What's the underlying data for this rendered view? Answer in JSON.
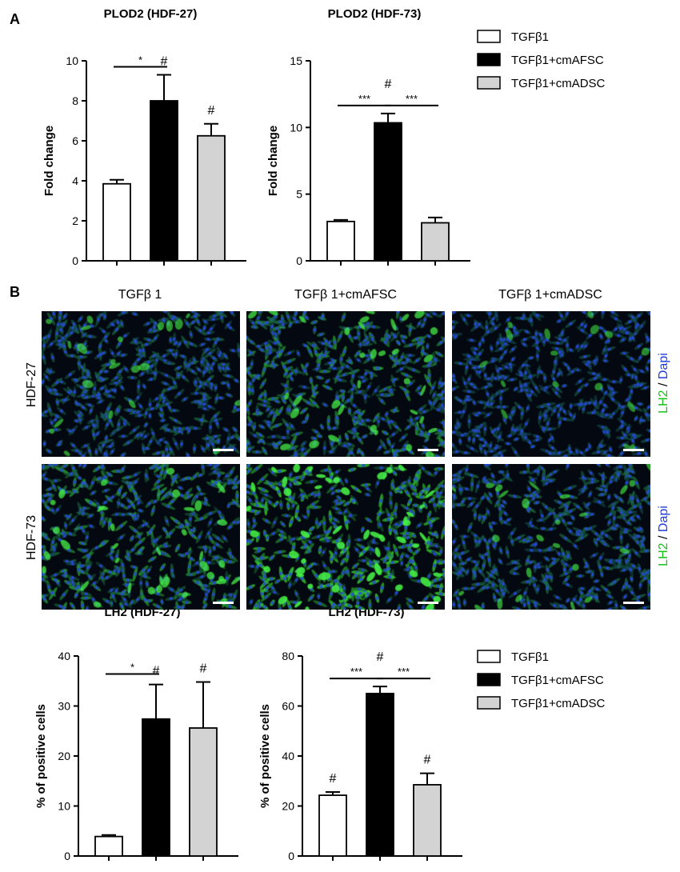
{
  "panels": {
    "a": "A",
    "b": "B"
  },
  "legend": {
    "items": [
      {
        "label": "TGFβ1",
        "color": "#ffffff"
      },
      {
        "label": "TGFβ1+cmAFSC",
        "color": "#000000"
      },
      {
        "label": "TGFβ1+cmADSC",
        "color": "#d3d3d3"
      }
    ]
  },
  "micrographs": {
    "columns": [
      "TGFβ 1",
      "TGFβ 1+cmAFSC",
      "TGFβ 1+cmADSC"
    ],
    "rows": [
      "HDF-27",
      "HDF-73"
    ],
    "stain_lh2": "LH2",
    "stain_sep": " / ",
    "stain_dapi": "Dapi",
    "green_intensity": [
      [
        0.25,
        0.55,
        0.12
      ],
      [
        0.6,
        0.95,
        0.3
      ]
    ]
  },
  "chart_data": [
    {
      "type": "bar",
      "title": "PLOD2 (HDF-27)",
      "ylabel": "Fold change",
      "categories": [
        "TGFβ1",
        "TGFβ1+cmAFSC",
        "TGFβ1+cmADSC"
      ],
      "values": [
        3.85,
        8.0,
        6.25
      ],
      "errors": [
        0.2,
        1.3,
        0.6
      ],
      "colors": [
        "#ffffff",
        "#000000",
        "#d3d3d3"
      ],
      "ylim": [
        0,
        10
      ],
      "yticks": [
        "0",
        "2",
        "4",
        "6",
        "8",
        "10"
      ],
      "bar_marks": [
        "",
        "#",
        "#"
      ],
      "brackets": [
        {
          "from": 0,
          "to": 1,
          "label": "*"
        }
      ]
    },
    {
      "type": "bar",
      "title": "PLOD2 (HDF-73)",
      "ylabel": "Fold change",
      "categories": [
        "TGFβ1",
        "TGFβ1+cmAFSC",
        "TGFβ1+cmADSC"
      ],
      "values": [
        2.95,
        10.35,
        2.85
      ],
      "errors": [
        0.12,
        0.7,
        0.4
      ],
      "colors": [
        "#ffffff",
        "#000000",
        "#d3d3d3"
      ],
      "ylim": [
        0,
        15
      ],
      "yticks": [
        "0",
        "5",
        "10",
        "15"
      ],
      "bar_marks": [
        "",
        "",
        ""
      ],
      "top_mark": "#",
      "brackets": [
        {
          "from": 0,
          "to": 1,
          "label": "***"
        },
        {
          "from": 1,
          "to": 2,
          "label": "***"
        }
      ]
    },
    {
      "type": "bar",
      "title": "LH2 (HDF-27)",
      "ylabel": "% of positive cells",
      "categories": [
        "TGFβ1",
        "TGFβ1+cmAFSC",
        "TGFβ1+cmADSC"
      ],
      "values": [
        3.9,
        27.4,
        25.6
      ],
      "errors": [
        0.3,
        6.9,
        9.2
      ],
      "colors": [
        "#ffffff",
        "#000000",
        "#d3d3d3"
      ],
      "ylim": [
        0,
        40
      ],
      "yticks": [
        "0",
        "10",
        "20",
        "30",
        "40"
      ],
      "bar_marks": [
        "",
        "#",
        "#"
      ],
      "brackets": [
        {
          "from": 0,
          "to": 1,
          "label": "*"
        }
      ]
    },
    {
      "type": "bar",
      "title": "LH2 (HDF-73)",
      "ylabel": "% of positive cells",
      "categories": [
        "TGFβ1",
        "TGFβ1+cmAFSC",
        "TGFβ1+cmADSC"
      ],
      "values": [
        24.3,
        65.0,
        28.5
      ],
      "errors": [
        1.3,
        2.8,
        4.6
      ],
      "colors": [
        "#ffffff",
        "#000000",
        "#d3d3d3"
      ],
      "ylim": [
        0,
        80
      ],
      "yticks": [
        "0",
        "20",
        "40",
        "60",
        "80"
      ],
      "bar_marks": [
        "#",
        "",
        "#"
      ],
      "top_mark": "#",
      "brackets": [
        {
          "from": 0,
          "to": 1,
          "label": "***"
        },
        {
          "from": 1,
          "to": 2,
          "label": "***"
        }
      ]
    }
  ]
}
